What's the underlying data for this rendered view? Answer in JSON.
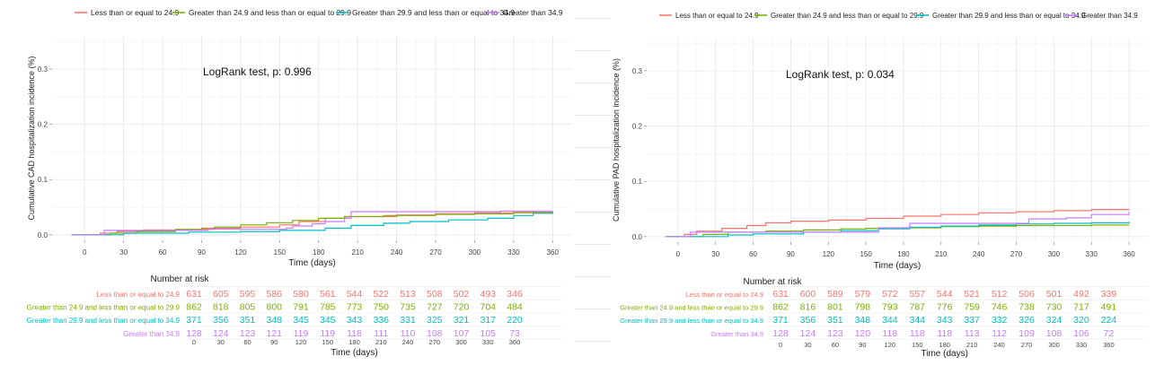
{
  "colors": {
    "s1": "#F8766D",
    "s2": "#7CAE00",
    "s3": "#00BFC4",
    "s4": "#C77CFF"
  },
  "legend": [
    "Less than or equal to 24.9",
    "Greater than 24.9 and less than or equal to 29.9",
    "Greater than 29.9 and less than or equal to 34.9",
    "Greater than 34.9"
  ],
  "chart_data": [
    {
      "type": "line",
      "title": "",
      "ylabel": "Cumulative CAD hospitalization incidence (%)",
      "xlabel": "Time (days)",
      "annotation": "LogRank test, p: 0.996",
      "xlim": [
        -25,
        375
      ],
      "ylim": [
        -0.01,
        0.36
      ],
      "x_ticks": [
        0,
        30,
        60,
        90,
        120,
        150,
        180,
        210,
        240,
        270,
        300,
        330,
        360
      ],
      "y_ticks": [
        0.0,
        0.1,
        0.2,
        0.3
      ],
      "y_tick_labels": [
        "0.0",
        "0.1",
        "0.2",
        "0.3"
      ],
      "grid": true,
      "legend_position": "top",
      "series": [
        {
          "name": "Less than or equal to 24.9",
          "points": [
            [
              -10,
              0
            ],
            [
              12,
              0.003
            ],
            [
              25,
              0.006
            ],
            [
              45,
              0.009
            ],
            [
              90,
              0.012
            ],
            [
              120,
              0.014
            ],
            [
              150,
              0.018
            ],
            [
              165,
              0.024
            ],
            [
              185,
              0.03
            ],
            [
              200,
              0.033
            ],
            [
              240,
              0.036
            ],
            [
              270,
              0.038
            ],
            [
              300,
              0.04
            ],
            [
              330,
              0.041
            ],
            [
              360,
              0.041
            ]
          ]
        },
        {
          "name": "Greater than 24.9 and less than or equal to 29.9",
          "points": [
            [
              -10,
              0
            ],
            [
              20,
              0.003
            ],
            [
              40,
              0.006
            ],
            [
              70,
              0.01
            ],
            [
              100,
              0.014
            ],
            [
              120,
              0.018
            ],
            [
              140,
              0.022
            ],
            [
              160,
              0.026
            ],
            [
              180,
              0.03
            ],
            [
              200,
              0.033
            ],
            [
              230,
              0.035
            ],
            [
              270,
              0.037
            ],
            [
              300,
              0.038
            ],
            [
              330,
              0.04
            ],
            [
              360,
              0.041
            ]
          ]
        },
        {
          "name": "Greater than 29.9 and less than or equal to 34.9",
          "points": [
            [
              -10,
              0
            ],
            [
              30,
              0.003
            ],
            [
              80,
              0.005
            ],
            [
              120,
              0.006
            ],
            [
              150,
              0.008
            ],
            [
              185,
              0.012
            ],
            [
              205,
              0.017
            ],
            [
              230,
              0.021
            ],
            [
              250,
              0.024
            ],
            [
              280,
              0.027
            ],
            [
              310,
              0.03
            ],
            [
              330,
              0.035
            ],
            [
              345,
              0.039
            ],
            [
              360,
              0.042
            ]
          ]
        },
        {
          "name": "Greater than 34.9",
          "points": [
            [
              -10,
              0
            ],
            [
              15,
              0.008
            ],
            [
              60,
              0.008
            ],
            [
              95,
              0.01
            ],
            [
              120,
              0.01
            ],
            [
              155,
              0.012
            ],
            [
              160,
              0.016
            ],
            [
              175,
              0.02
            ],
            [
              185,
              0.024
            ],
            [
              200,
              0.03
            ],
            [
              205,
              0.042
            ],
            [
              320,
              0.043
            ],
            [
              360,
              0.043
            ]
          ]
        }
      ],
      "risk_table": {
        "title": "Number at risk",
        "times": [
          0,
          30,
          60,
          90,
          120,
          150,
          180,
          210,
          240,
          270,
          300,
          330,
          360
        ],
        "xlabel": "Time (days)",
        "rows": [
          {
            "label": "Less than or equal to 24.9",
            "values": [
              631,
              605,
              595,
              586,
              580,
              561,
              544,
              522,
              513,
              508,
              502,
              493,
              346
            ]
          },
          {
            "label": "Greater than 24.9 and less than or equal to 29.9",
            "values": [
              862,
              818,
              805,
              800,
              791,
              785,
              773,
              750,
              735,
              727,
              720,
              704,
              484
            ]
          },
          {
            "label": "Greater than 29.9 and less than or equal to 34.9",
            "values": [
              371,
              356,
              351,
              348,
              345,
              345,
              343,
              336,
              331,
              325,
              321,
              317,
              220
            ]
          },
          {
            "label": "Greater than 34.9",
            "values": [
              128,
              124,
              123,
              121,
              119,
              119,
              118,
              111,
              110,
              108,
              107,
              105,
              73
            ]
          }
        ]
      }
    },
    {
      "type": "line",
      "title": "",
      "ylabel": "Cumulative PAD hospitalization incidence (%)",
      "xlabel": "Time (days)",
      "annotation": "LogRank test, p: 0.034",
      "xlim": [
        -25,
        375
      ],
      "ylim": [
        -0.01,
        0.36
      ],
      "x_ticks": [
        0,
        30,
        60,
        90,
        120,
        150,
        180,
        210,
        240,
        270,
        300,
        330,
        360
      ],
      "y_ticks": [
        0.0,
        0.1,
        0.2,
        0.3
      ],
      "y_tick_labels": [
        "0.0",
        "0.1",
        "0.2",
        "0.3"
      ],
      "grid": true,
      "legend_position": "top",
      "series": [
        {
          "name": "Less than or equal to 24.9",
          "points": [
            [
              -10,
              0
            ],
            [
              5,
              0.004
            ],
            [
              15,
              0.01
            ],
            [
              35,
              0.015
            ],
            [
              55,
              0.02
            ],
            [
              70,
              0.025
            ],
            [
              90,
              0.028
            ],
            [
              120,
              0.03
            ],
            [
              150,
              0.033
            ],
            [
              180,
              0.037
            ],
            [
              210,
              0.04
            ],
            [
              240,
              0.043
            ],
            [
              270,
              0.045
            ],
            [
              300,
              0.047
            ],
            [
              330,
              0.049
            ],
            [
              360,
              0.05
            ]
          ]
        },
        {
          "name": "Greater than 24.9 and less than or equal to 29.9",
          "points": [
            [
              -10,
              0
            ],
            [
              20,
              0.004
            ],
            [
              40,
              0.008
            ],
            [
              70,
              0.01
            ],
            [
              100,
              0.012
            ],
            [
              130,
              0.014
            ],
            [
              150,
              0.015
            ],
            [
              180,
              0.016
            ],
            [
              210,
              0.018
            ],
            [
              240,
              0.019
            ],
            [
              270,
              0.02
            ],
            [
              300,
              0.02
            ],
            [
              330,
              0.021
            ],
            [
              360,
              0.021
            ]
          ]
        },
        {
          "name": "Greater than 29.9 and less than or equal to 34.9",
          "points": [
            [
              -10,
              0
            ],
            [
              40,
              0.003
            ],
            [
              60,
              0.005
            ],
            [
              100,
              0.008
            ],
            [
              130,
              0.011
            ],
            [
              160,
              0.014
            ],
            [
              185,
              0.017
            ],
            [
              210,
              0.019
            ],
            [
              240,
              0.021
            ],
            [
              270,
              0.023
            ],
            [
              300,
              0.024
            ],
            [
              330,
              0.025
            ],
            [
              360,
              0.027
            ]
          ]
        },
        {
          "name": "Greater than 34.9",
          "points": [
            [
              -10,
              0
            ],
            [
              10,
              0.008
            ],
            [
              60,
              0.008
            ],
            [
              90,
              0.008
            ],
            [
              120,
              0.008
            ],
            [
              160,
              0.016
            ],
            [
              185,
              0.024
            ],
            [
              210,
              0.024
            ],
            [
              245,
              0.024
            ],
            [
              280,
              0.032
            ],
            [
              310,
              0.034
            ],
            [
              330,
              0.04
            ],
            [
              360,
              0.045
            ]
          ]
        }
      ],
      "risk_table": {
        "title": "Number at risk",
        "times": [
          0,
          30,
          60,
          90,
          120,
          150,
          180,
          210,
          240,
          270,
          300,
          330,
          360
        ],
        "xlabel": "Time (days)",
        "rows": [
          {
            "label": "Less than or equal to 24.9",
            "values": [
              631,
              600,
              589,
              579,
              572,
              557,
              544,
              521,
              512,
              506,
              501,
              492,
              339
            ]
          },
          {
            "label": "Greater than 24.9 and less than or equal to 29.9",
            "values": [
              862,
              816,
              801,
              798,
              793,
              787,
              776,
              759,
              746,
              738,
              730,
              717,
              491
            ]
          },
          {
            "label": "Greater than 29.9 and less than or equal to 34.9",
            "values": [
              371,
              356,
              351,
              348,
              344,
              344,
              343,
              337,
              332,
              326,
              324,
              320,
              224
            ]
          },
          {
            "label": "Greater than 34.9",
            "values": [
              128,
              124,
              123,
              120,
              118,
              118,
              118,
              113,
              112,
              109,
              108,
              106,
              72
            ]
          }
        ]
      }
    }
  ]
}
